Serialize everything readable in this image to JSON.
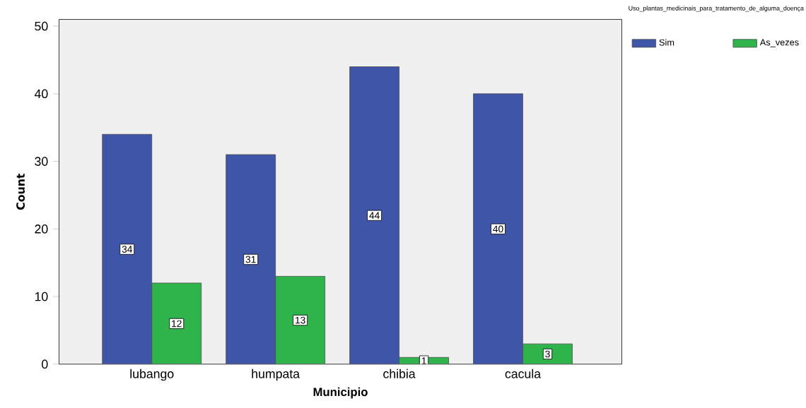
{
  "chart_data": {
    "type": "bar",
    "xlabel": "Municipio",
    "ylabel": "Count",
    "legend_title": "Uso_plantas_medicinais_para_tratamento_de_alguma_doença",
    "categories": [
      "lubango",
      "humpata",
      "chibia",
      "cacula"
    ],
    "series": [
      {
        "name": "Sim",
        "color": "#3f55a8",
        "values": [
          34,
          31,
          44,
          40
        ]
      },
      {
        "name": "As_vezes",
        "color": "#2fb34b",
        "values": [
          12,
          13,
          1,
          3
        ]
      }
    ],
    "ylim": [
      0,
      51
    ],
    "yticks": [
      0,
      10,
      20,
      30,
      40,
      50
    ],
    "data_labels": true,
    "legend": "top right"
  }
}
